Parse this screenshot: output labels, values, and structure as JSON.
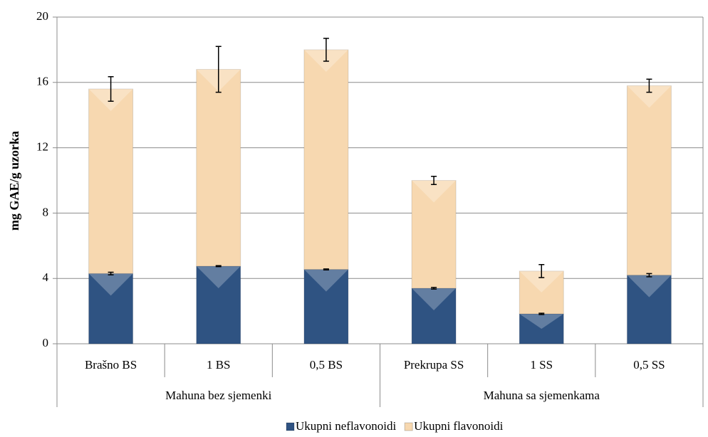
{
  "chart_data": {
    "type": "stacked_bar",
    "y_label": "mg GAE/g uzorka",
    "groups": [
      {
        "name": "Mahuna bez sjemenki",
        "categories": [
          "Brašno BS",
          "1 BS",
          "0,5 BS"
        ]
      },
      {
        "name": "Mahuna sa sjemenkama",
        "categories": [
          "Prekrupa SS",
          "1 SS",
          "0,5 SS"
        ]
      }
    ],
    "series": [
      {
        "name": "Ukupni neflavonoidi",
        "color": "#2f5382",
        "values": [
          4.3,
          4.75,
          4.55,
          3.4,
          1.83,
          4.2
        ],
        "errors": [
          0.08,
          0.03,
          0.03,
          0.05,
          0.04,
          0.1
        ]
      },
      {
        "name": "Ukupni flavonoidi",
        "color": "#f7d8b0",
        "values": [
          11.3,
          12.05,
          13.45,
          6.6,
          2.62,
          11.6
        ],
        "errors": [
          0.75,
          1.4,
          0.7,
          0.25,
          0.4,
          0.4
        ]
      }
    ],
    "ylim": [
      0,
      20
    ],
    "yticks": [
      0,
      4,
      8,
      12,
      16,
      20
    ],
    "grid": true,
    "legend": "bottom"
  }
}
